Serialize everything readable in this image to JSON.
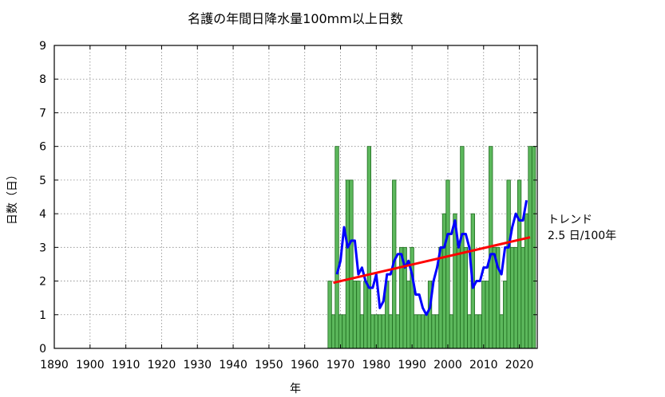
{
  "chart_data": {
    "type": "bar",
    "title": "名護の年間日降水量100mm以上日数",
    "xlabel": "年",
    "ylabel": "日数（日）",
    "xlim": [
      1890,
      2025
    ],
    "ylim": [
      0,
      9
    ],
    "x_ticks": [
      1890,
      1900,
      1910,
      1920,
      1930,
      1940,
      1950,
      1960,
      1970,
      1980,
      1990,
      2000,
      2010,
      2020
    ],
    "y_ticks": [
      0,
      1,
      2,
      3,
      4,
      5,
      6,
      7,
      8,
      9
    ],
    "grid": true,
    "colors": {
      "bar_fill": "#5cb85c",
      "bar_edge": "#1e6b1e",
      "moving_average": "#0000ff",
      "trend": "#ff0000"
    },
    "bars": {
      "years": [
        1967,
        1968,
        1969,
        1970,
        1971,
        1972,
        1973,
        1974,
        1975,
        1976,
        1977,
        1978,
        1979,
        1980,
        1981,
        1982,
        1983,
        1984,
        1985,
        1986,
        1987,
        1988,
        1989,
        1990,
        1991,
        1992,
        1993,
        1994,
        1995,
        1996,
        1997,
        1998,
        1999,
        2000,
        2001,
        2002,
        2003,
        2004,
        2005,
        2006,
        2007,
        2008,
        2009,
        2010,
        2011,
        2012,
        2013,
        2014,
        2015,
        2016,
        2017,
        2018,
        2019,
        2020,
        2021,
        2022,
        2023,
        2024
      ],
      "values": [
        2,
        1,
        6,
        1,
        1,
        5,
        5,
        2,
        2,
        1,
        2,
        6,
        1,
        1,
        1,
        1,
        2,
        1,
        5,
        1,
        3,
        3,
        2,
        3,
        1,
        1,
        1,
        1,
        2,
        1,
        1,
        3,
        4,
        5,
        1,
        4,
        3,
        6,
        3,
        1,
        4,
        1,
        1,
        2,
        2,
        6,
        3,
        3,
        1,
        2,
        5,
        3,
        3,
        5,
        3,
        4,
        6,
        6
      ]
    },
    "moving_average": {
      "years": [
        1969,
        1970,
        1971,
        1972,
        1973,
        1974,
        1975,
        1976,
        1977,
        1978,
        1979,
        1980,
        1981,
        1982,
        1983,
        1984,
        1985,
        1986,
        1987,
        1988,
        1989,
        1990,
        1991,
        1992,
        1993,
        1994,
        1995,
        1996,
        1997,
        1998,
        1999,
        2000,
        2001,
        2002,
        2003,
        2004,
        2005,
        2006,
        2007,
        2008,
        2009,
        2010,
        2011,
        2012,
        2013,
        2014,
        2015,
        2016,
        2017,
        2018,
        2019,
        2020,
        2021,
        2022
      ],
      "values": [
        2.2,
        2.6,
        3.6,
        3.0,
        3.2,
        3.2,
        2.2,
        2.4,
        2.0,
        1.8,
        1.8,
        2.2,
        1.2,
        1.4,
        2.2,
        2.2,
        2.6,
        2.8,
        2.8,
        2.4,
        2.6,
        2.2,
        1.6,
        1.6,
        1.2,
        1.0,
        1.2,
        2.0,
        2.4,
        3.0,
        3.0,
        3.4,
        3.4,
        3.8,
        3.0,
        3.4,
        3.4,
        3.0,
        1.8,
        2.0,
        2.0,
        2.4,
        2.4,
        2.8,
        2.8,
        2.4,
        2.2,
        3.0,
        3.0,
        3.6,
        4.0,
        3.8,
        3.8,
        4.4
      ]
    },
    "trend": {
      "label": "トレンド",
      "rate": "2.5 日/100年",
      "start": [
        1968,
        1.95
      ],
      "end": [
        2023,
        3.3
      ]
    }
  }
}
